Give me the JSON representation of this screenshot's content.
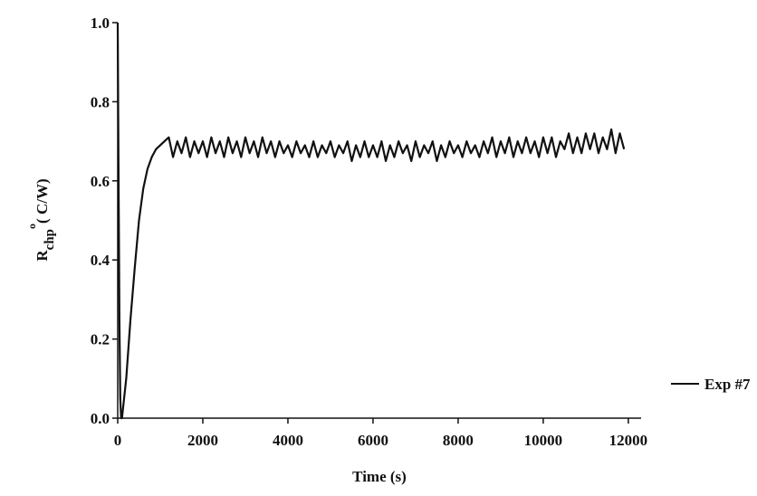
{
  "chart_data": {
    "type": "line",
    "x_label": "Time (s)",
    "y_label": {
      "main": "R",
      "subscript": "chp",
      "superscript": "o",
      "unit": "( C/W)"
    },
    "x": [
      0,
      20,
      40,
      60,
      80,
      100,
      120,
      200,
      300,
      400,
      500,
      600,
      700,
      800,
      900,
      1000,
      1100,
      1200,
      1300,
      1400,
      1500,
      1600,
      1700,
      1800,
      1900,
      2000,
      2100,
      2200,
      2300,
      2400,
      2500,
      2600,
      2700,
      2800,
      2900,
      3000,
      3100,
      3200,
      3300,
      3400,
      3500,
      3600,
      3700,
      3800,
      3900,
      4000,
      4100,
      4200,
      4300,
      4400,
      4500,
      4600,
      4700,
      4800,
      4900,
      5000,
      5100,
      5200,
      5300,
      5400,
      5500,
      5600,
      5700,
      5800,
      5900,
      6000,
      6100,
      6200,
      6300,
      6400,
      6500,
      6600,
      6700,
      6800,
      6900,
      7000,
      7100,
      7200,
      7300,
      7400,
      7500,
      7600,
      7700,
      7800,
      7900,
      8000,
      8100,
      8200,
      8300,
      8400,
      8500,
      8600,
      8700,
      8800,
      8900,
      9000,
      9100,
      9200,
      9300,
      9400,
      9500,
      9600,
      9700,
      9800,
      9900,
      10000,
      10100,
      10200,
      10300,
      10400,
      10500,
      10600,
      10700,
      10800,
      10900,
      11000,
      11100,
      11200,
      11300,
      11400,
      11500,
      11600,
      11700,
      11800,
      11900
    ],
    "series": [
      {
        "name": "Exp #7",
        "color": "#111111",
        "values": [
          1.0,
          0.6,
          0.25,
          0.05,
          0.0,
          0.0,
          0.02,
          0.1,
          0.25,
          0.38,
          0.5,
          0.58,
          0.63,
          0.66,
          0.68,
          0.69,
          0.7,
          0.71,
          0.66,
          0.7,
          0.67,
          0.71,
          0.66,
          0.7,
          0.67,
          0.7,
          0.66,
          0.71,
          0.67,
          0.7,
          0.66,
          0.71,
          0.67,
          0.7,
          0.66,
          0.71,
          0.67,
          0.7,
          0.66,
          0.71,
          0.67,
          0.7,
          0.66,
          0.7,
          0.67,
          0.69,
          0.66,
          0.7,
          0.67,
          0.69,
          0.66,
          0.7,
          0.66,
          0.69,
          0.67,
          0.7,
          0.66,
          0.69,
          0.67,
          0.7,
          0.65,
          0.69,
          0.66,
          0.7,
          0.66,
          0.69,
          0.66,
          0.7,
          0.65,
          0.69,
          0.66,
          0.7,
          0.67,
          0.69,
          0.65,
          0.7,
          0.66,
          0.69,
          0.67,
          0.7,
          0.65,
          0.69,
          0.66,
          0.7,
          0.67,
          0.69,
          0.66,
          0.7,
          0.67,
          0.69,
          0.66,
          0.7,
          0.67,
          0.71,
          0.66,
          0.7,
          0.67,
          0.71,
          0.66,
          0.7,
          0.67,
          0.71,
          0.67,
          0.7,
          0.66,
          0.71,
          0.67,
          0.71,
          0.66,
          0.7,
          0.68,
          0.72,
          0.67,
          0.71,
          0.67,
          0.72,
          0.68,
          0.72,
          0.67,
          0.71,
          0.68,
          0.73,
          0.67,
          0.72,
          0.68
        ]
      }
    ],
    "xlim": [
      0,
      12300
    ],
    "ylim": [
      0,
      1.0
    ],
    "xticks": [
      0,
      2000,
      4000,
      6000,
      8000,
      10000,
      12000
    ],
    "yticks": [
      {
        "value": 0,
        "label": "0.0"
      },
      0.2,
      0.4,
      0.6,
      0.8,
      {
        "value": 1.0,
        "label": "1.0"
      }
    ],
    "grid": false,
    "legend": "right"
  }
}
